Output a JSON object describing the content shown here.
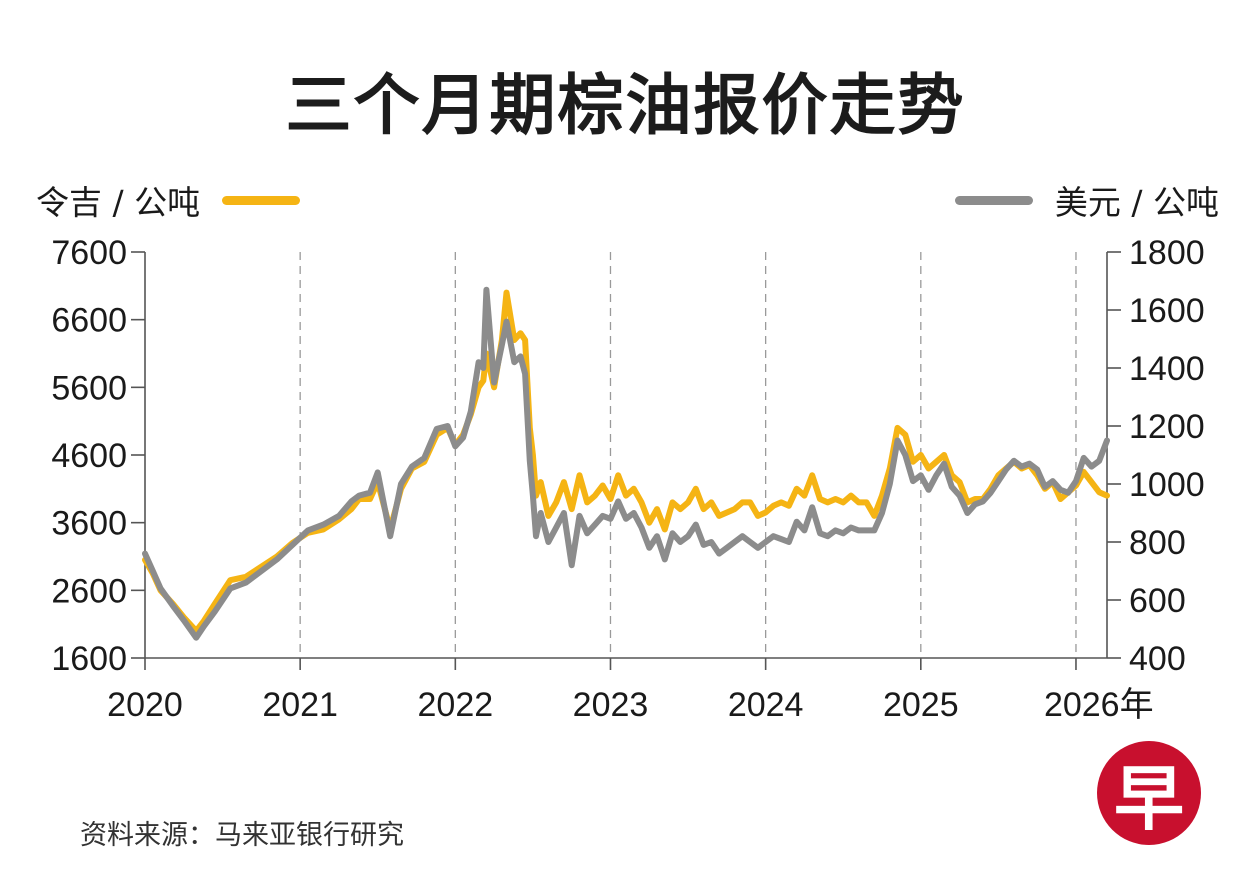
{
  "title": "三个月期棕油报价走势",
  "left_unit": "令吉 / 公吨",
  "right_unit": "美元 / 公吨",
  "source": "资料来源：马来亚银行研究",
  "logo_text": "早",
  "colors": {
    "myr": "#f5b414",
    "usd": "#8c8c8c",
    "logo": "#c8102e"
  },
  "chart_data": {
    "type": "line",
    "title": "三个月期棕油报价走势",
    "xlabel": "",
    "x_ticks": [
      "2020",
      "2021",
      "2022",
      "2023",
      "2024",
      "2025",
      "2026年"
    ],
    "x_range": [
      2020.0,
      2026.2
    ],
    "ylim_left": [
      1600,
      7600
    ],
    "yticks_left": [
      "7600",
      "6600",
      "5600",
      "4600",
      "3600",
      "2600",
      "1600"
    ],
    "ylim_right": [
      400,
      1800
    ],
    "yticks_right": [
      "1800",
      "1600",
      "1400",
      "1200",
      "1000",
      "800",
      "600",
      "400"
    ],
    "grid": "vertical dashed at year boundaries",
    "series": [
      {
        "name": "令吉 / 公吨",
        "axis": "left",
        "color": "#f5b414",
        "x": [
          2020.0,
          2020.05,
          2020.1,
          2020.18,
          2020.25,
          2020.33,
          2020.38,
          2020.45,
          2020.55,
          2020.65,
          2020.75,
          2020.85,
          2020.95,
          2021.05,
          2021.15,
          2021.25,
          2021.33,
          2021.38,
          2021.45,
          2021.5,
          2021.58,
          2021.65,
          2021.72,
          2021.8,
          2021.88,
          2021.95,
          2022.0,
          2022.05,
          2022.1,
          2022.15,
          2022.18,
          2022.2,
          2022.25,
          2022.3,
          2022.33,
          2022.38,
          2022.42,
          2022.45,
          2022.48,
          2022.5,
          2022.52,
          2022.55,
          2022.6,
          2022.65,
          2022.7,
          2022.75,
          2022.8,
          2022.85,
          2022.9,
          2022.95,
          2023.0,
          2023.05,
          2023.1,
          2023.15,
          2023.2,
          2023.25,
          2023.3,
          2023.35,
          2023.4,
          2023.45,
          2023.5,
          2023.55,
          2023.6,
          2023.65,
          2023.7,
          2023.75,
          2023.8,
          2023.85,
          2023.9,
          2023.95,
          2024.0,
          2024.05,
          2024.1,
          2024.15,
          2024.2,
          2024.25,
          2024.3,
          2024.35,
          2024.4,
          2024.45,
          2024.5,
          2024.55,
          2024.6,
          2024.65,
          2024.7,
          2024.75,
          2024.8,
          2024.85,
          2024.9,
          2024.95,
          2025.0,
          2025.05,
          2025.1,
          2025.15,
          2025.2,
          2025.25,
          2025.3,
          2025.35,
          2025.4,
          2025.45,
          2025.5,
          2025.55,
          2025.6,
          2025.65,
          2025.7,
          2025.75,
          2025.8,
          2025.85,
          2025.9,
          2025.95,
          2026.0,
          2026.05,
          2026.1,
          2026.15,
          2026.2
        ],
        "values": [
          3050,
          2850,
          2600,
          2400,
          2200,
          2000,
          2150,
          2400,
          2750,
          2800,
          2950,
          3100,
          3300,
          3450,
          3500,
          3650,
          3800,
          3950,
          3950,
          4200,
          3500,
          4100,
          4400,
          4500,
          4900,
          5000,
          4750,
          4900,
          5200,
          5600,
          5700,
          6100,
          5600,
          6300,
          7000,
          6300,
          6400,
          6300,
          5000,
          4600,
          4000,
          4200,
          3700,
          3900,
          4200,
          3800,
          4300,
          3900,
          4000,
          4150,
          3950,
          4300,
          4000,
          4100,
          3900,
          3600,
          3800,
          3500,
          3900,
          3800,
          3900,
          4100,
          3800,
          3900,
          3700,
          3750,
          3800,
          3900,
          3900,
          3700,
          3750,
          3850,
          3900,
          3850,
          4100,
          4000,
          4300,
          3950,
          3900,
          3950,
          3900,
          4000,
          3900,
          3900,
          3700,
          4000,
          4400,
          5000,
          4900,
          4500,
          4600,
          4400,
          4500,
          4600,
          4300,
          4200,
          3900,
          3950,
          3950,
          4100,
          4300,
          4400,
          4500,
          4400,
          4450,
          4300,
          4100,
          4200,
          3950,
          4050,
          4150,
          4350,
          4200,
          4050,
          4000
        ]
      },
      {
        "name": "美元 / 公吨",
        "axis": "right",
        "color": "#8c8c8c",
        "x": [
          2020.0,
          2020.05,
          2020.1,
          2020.18,
          2020.25,
          2020.33,
          2020.38,
          2020.45,
          2020.55,
          2020.65,
          2020.75,
          2020.85,
          2020.95,
          2021.05,
          2021.15,
          2021.25,
          2021.33,
          2021.38,
          2021.45,
          2021.5,
          2021.58,
          2021.65,
          2021.72,
          2021.8,
          2021.88,
          2021.95,
          2022.0,
          2022.05,
          2022.1,
          2022.15,
          2022.18,
          2022.2,
          2022.25,
          2022.3,
          2022.33,
          2022.38,
          2022.42,
          2022.45,
          2022.48,
          2022.5,
          2022.52,
          2022.55,
          2022.6,
          2022.65,
          2022.7,
          2022.75,
          2022.8,
          2022.85,
          2022.9,
          2022.95,
          2023.0,
          2023.05,
          2023.1,
          2023.15,
          2023.2,
          2023.25,
          2023.3,
          2023.35,
          2023.4,
          2023.45,
          2023.5,
          2023.55,
          2023.6,
          2023.65,
          2023.7,
          2023.75,
          2023.8,
          2023.85,
          2023.9,
          2023.95,
          2024.0,
          2024.05,
          2024.1,
          2024.15,
          2024.2,
          2024.25,
          2024.3,
          2024.35,
          2024.4,
          2024.45,
          2024.5,
          2024.55,
          2024.6,
          2024.65,
          2024.7,
          2024.75,
          2024.8,
          2024.85,
          2024.9,
          2024.95,
          2025.0,
          2025.05,
          2025.1,
          2025.15,
          2025.2,
          2025.25,
          2025.3,
          2025.35,
          2025.4,
          2025.45,
          2025.5,
          2025.55,
          2025.6,
          2025.65,
          2025.7,
          2025.75,
          2025.8,
          2025.85,
          2025.9,
          2025.95,
          2026.0,
          2026.05,
          2026.1,
          2026.15,
          2026.2
        ],
        "values": [
          760,
          700,
          640,
          580,
          530,
          470,
          510,
          560,
          640,
          660,
          700,
          740,
          790,
          840,
          860,
          890,
          940,
          960,
          970,
          1040,
          820,
          1000,
          1060,
          1090,
          1190,
          1200,
          1130,
          1160,
          1250,
          1420,
          1400,
          1670,
          1350,
          1480,
          1560,
          1420,
          1440,
          1380,
          1080,
          960,
          820,
          900,
          800,
          850,
          900,
          720,
          890,
          830,
          860,
          890,
          880,
          940,
          880,
          900,
          850,
          780,
          820,
          740,
          830,
          800,
          820,
          860,
          790,
          800,
          760,
          780,
          800,
          820,
          800,
          780,
          800,
          820,
          810,
          800,
          870,
          840,
          920,
          830,
          820,
          840,
          830,
          850,
          840,
          840,
          840,
          900,
          1000,
          1150,
          1100,
          1010,
          1030,
          980,
          1030,
          1070,
          990,
          960,
          900,
          930,
          940,
          970,
          1010,
          1050,
          1080,
          1060,
          1070,
          1050,
          990,
          1010,
          980,
          970,
          1010,
          1090,
          1060,
          1080,
          1150
        ]
      }
    ]
  }
}
